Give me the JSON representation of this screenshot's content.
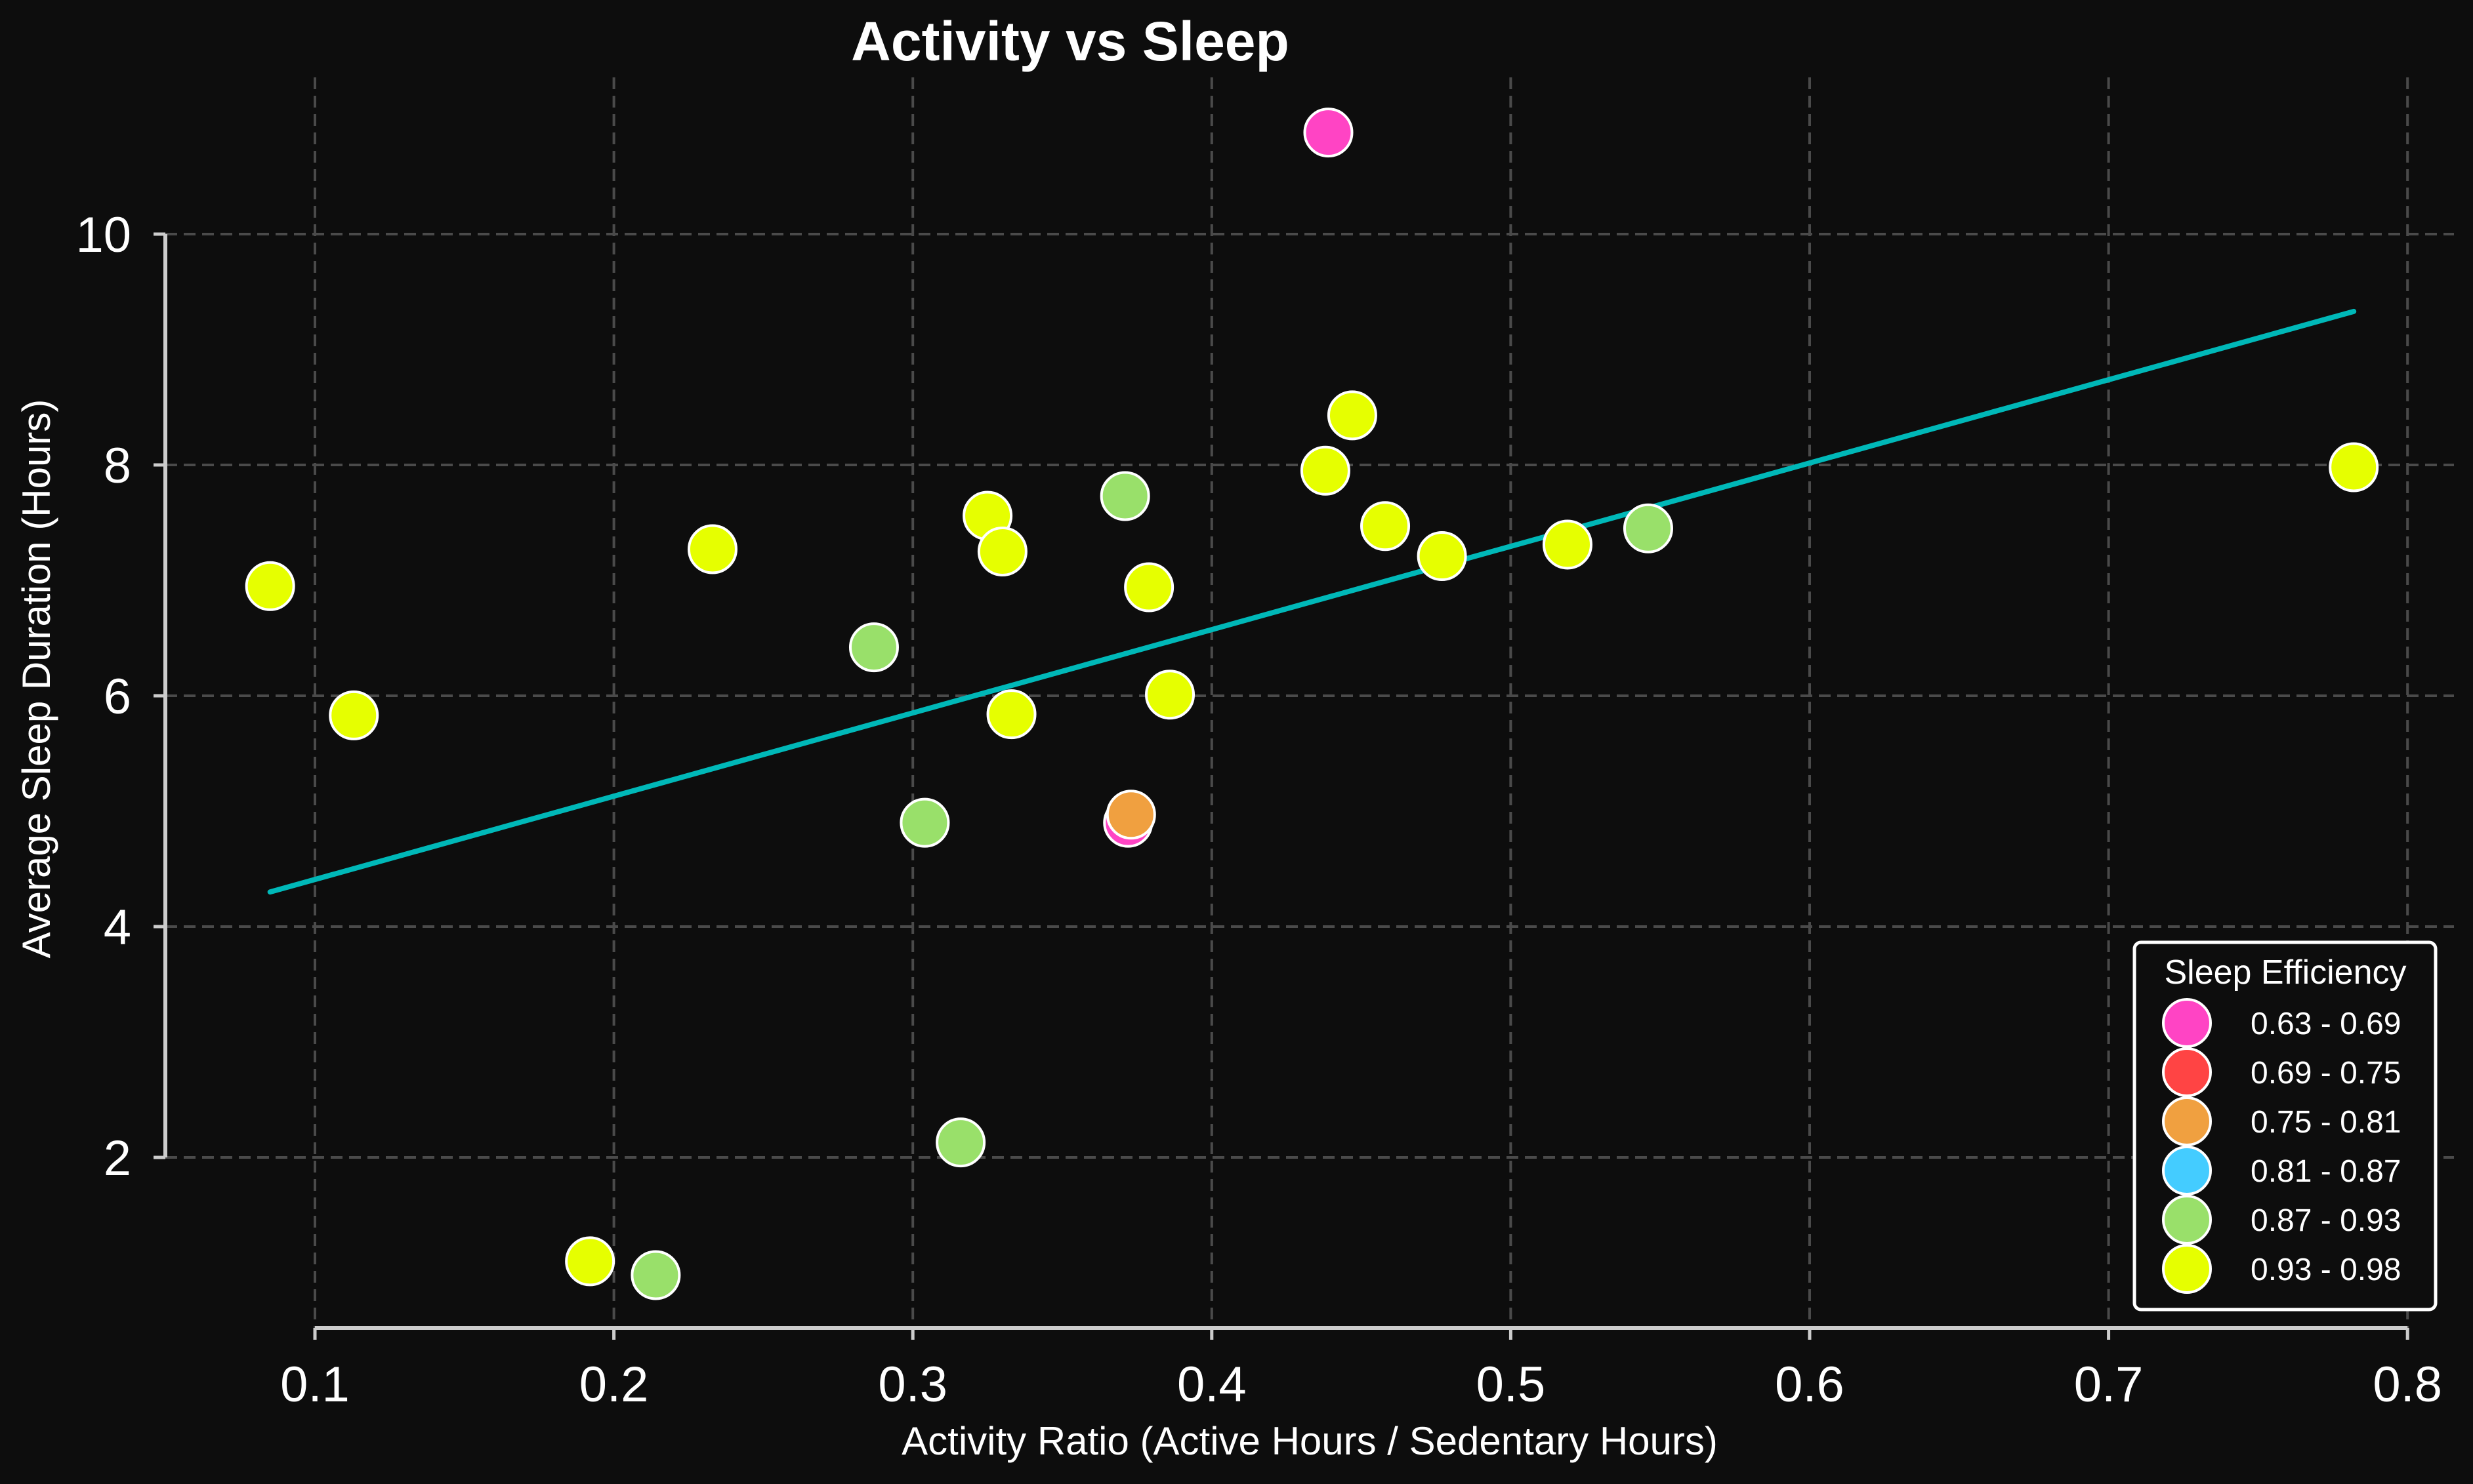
{
  "chart_data": {
    "type": "scatter",
    "title": "Activity vs Sleep",
    "xlabel": "Activity Ratio (Active Hours / Sedentary Hours)",
    "ylabel": "Average Sleep Duration (Hours)",
    "xlim": [
      0.05,
      0.8
    ],
    "ylim": [
      0.5,
      11.0
    ],
    "xticks": [
      "0.1",
      "0.2",
      "0.3",
      "0.4",
      "0.5",
      "0.6",
      "0.7",
      "0.8"
    ],
    "yticks": [
      "2",
      "4",
      "6",
      "8",
      "10"
    ],
    "grid": true,
    "legend": {
      "title": "Sleep Efficiency",
      "position": "lower-right",
      "entries": [
        {
          "label": "0.63 - 0.69",
          "color": "#ff44c4"
        },
        {
          "label": "0.69 - 0.75",
          "color": "#ff4444"
        },
        {
          "label": "0.75 - 0.81",
          "color": "#f0a040"
        },
        {
          "label": "0.81 - 0.87",
          "color": "#44ccff"
        },
        {
          "label": "0.87 - 0.93",
          "color": "#99e06a"
        },
        {
          "label": "0.93 - 0.98",
          "color": "#e6ff00"
        }
      ]
    },
    "points": [
      {
        "x": 0.439,
        "y": 10.88,
        "bin": 0
      },
      {
        "x": 0.372,
        "y": 4.9,
        "bin": 0
      },
      {
        "x": 0.373,
        "y": 4.97,
        "bin": 2
      },
      {
        "x": 0.371,
        "y": 7.73,
        "bin": 4
      },
      {
        "x": 0.287,
        "y": 6.42,
        "bin": 4
      },
      {
        "x": 0.304,
        "y": 4.9,
        "bin": 4
      },
      {
        "x": 0.316,
        "y": 2.13,
        "bin": 4
      },
      {
        "x": 0.214,
        "y": 0.98,
        "bin": 4
      },
      {
        "x": 0.546,
        "y": 7.45,
        "bin": 4
      },
      {
        "x": 0.085,
        "y": 6.95,
        "bin": 5
      },
      {
        "x": 0.113,
        "y": 5.83,
        "bin": 5
      },
      {
        "x": 0.192,
        "y": 1.1,
        "bin": 5
      },
      {
        "x": 0.233,
        "y": 7.27,
        "bin": 5
      },
      {
        "x": 0.325,
        "y": 7.56,
        "bin": 5
      },
      {
        "x": 0.33,
        "y": 7.25,
        "bin": 5
      },
      {
        "x": 0.333,
        "y": 5.84,
        "bin": 5
      },
      {
        "x": 0.379,
        "y": 6.94,
        "bin": 5
      },
      {
        "x": 0.386,
        "y": 6.01,
        "bin": 5
      },
      {
        "x": 0.438,
        "y": 7.95,
        "bin": 5
      },
      {
        "x": 0.447,
        "y": 8.43,
        "bin": 5
      },
      {
        "x": 0.458,
        "y": 7.47,
        "bin": 5
      },
      {
        "x": 0.477,
        "y": 7.21,
        "bin": 5
      },
      {
        "x": 0.519,
        "y": 7.31,
        "bin": 5
      },
      {
        "x": 0.782,
        "y": 7.98,
        "bin": 5
      }
    ],
    "trendline": {
      "color": "#00b8b8",
      "x": [
        0.085,
        0.782
      ],
      "y": [
        4.3,
        9.33
      ]
    }
  }
}
